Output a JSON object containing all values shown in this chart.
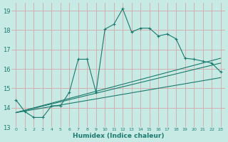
{
  "title": "",
  "xlabel": "Humidex (Indice chaleur)",
  "ylabel": "",
  "bg_color": "#c8eae4",
  "grid_color": "#d4a8a8",
  "line_color": "#1a7a6e",
  "xlim": [
    -0.5,
    23.5
  ],
  "ylim": [
    13,
    19.4
  ],
  "yticks": [
    13,
    14,
    15,
    16,
    17,
    18,
    19
  ],
  "xticks": [
    0,
    1,
    2,
    3,
    4,
    5,
    6,
    7,
    8,
    9,
    10,
    11,
    12,
    13,
    14,
    15,
    16,
    17,
    18,
    19,
    20,
    21,
    22,
    23
  ],
  "curve_x": [
    0,
    1,
    2,
    3,
    4,
    5,
    6,
    7,
    8,
    9,
    10,
    11,
    12,
    13,
    14,
    15,
    16,
    17,
    18,
    19,
    20,
    21,
    22,
    23
  ],
  "curve_y": [
    14.4,
    13.8,
    13.5,
    13.5,
    14.1,
    14.1,
    14.8,
    16.5,
    16.5,
    14.8,
    18.05,
    18.3,
    19.1,
    17.9,
    18.1,
    18.1,
    17.7,
    17.8,
    17.55,
    16.55,
    16.5,
    16.4,
    16.3,
    15.85
  ],
  "line1_x": [
    0,
    23
  ],
  "line1_y": [
    13.75,
    15.55
  ],
  "line2_x": [
    0,
    23
  ],
  "line2_y": [
    13.75,
    16.3
  ],
  "line3_x": [
    0,
    23
  ],
  "line3_y": [
    13.75,
    16.55
  ]
}
